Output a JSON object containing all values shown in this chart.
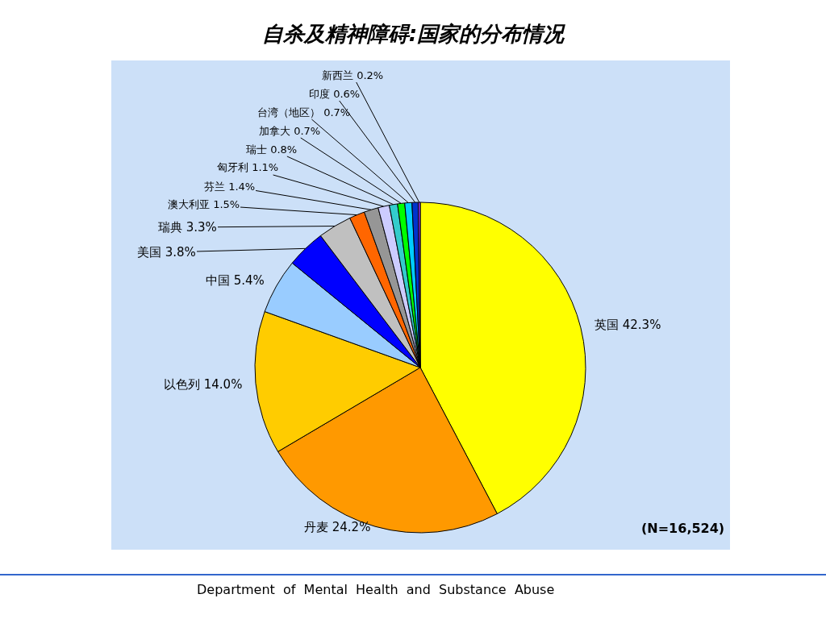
{
  "chart_data": {
    "type": "pie",
    "title": "自杀及精神障碍:国家的分布情况",
    "categories": [
      "英国",
      "丹麦",
      "以色列",
      "中国",
      "美国",
      "瑞典",
      "澳大利亚",
      "芬兰",
      "匈牙利",
      "瑞士",
      "加拿大",
      "台湾（地区）",
      "印度",
      "新西兰"
    ],
    "values": [
      42.3,
      24.2,
      14.0,
      5.4,
      3.8,
      3.3,
      1.5,
      1.4,
      1.1,
      0.8,
      0.7,
      0.7,
      0.6,
      0.2
    ],
    "value_labels": [
      "42.3%",
      "24.2%",
      "14.0%",
      "5.4%",
      "3.8%",
      "3.3%",
      "1.5%",
      "1.4%",
      "1.1%",
      "0.8%",
      "0.7%",
      "0.7%",
      "0.6%",
      "0.2%"
    ],
    "colors": [
      "#ffff00",
      "#ff9900",
      "#ffcc00",
      "#99ccff",
      "#0000ff",
      "#c0c0c0",
      "#ff6600",
      "#969696",
      "#ccccff",
      "#33cccc",
      "#00ff00",
      "#00ccff",
      "#0033cc",
      "#9933ff"
    ],
    "legend": false,
    "annotations": [
      "(N=16,524)",
      "Department of Mental Health and Substance Abuse"
    ]
  }
}
